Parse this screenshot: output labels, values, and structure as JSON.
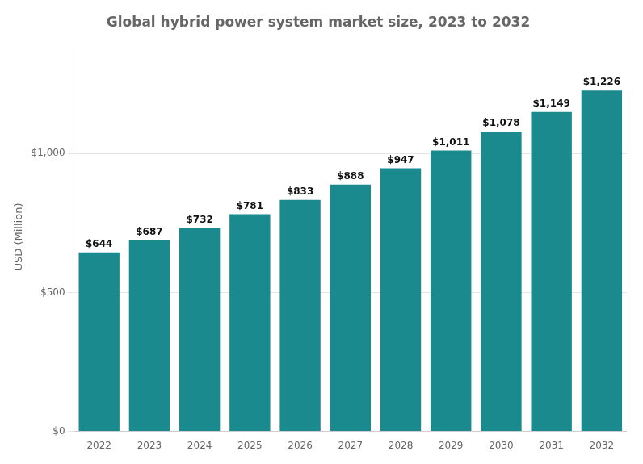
{
  "chart_data": {
    "type": "bar",
    "title": "Global hybrid power system market size, 2023 to 2032",
    "categories": [
      "2022",
      "2023",
      "2024",
      "2025",
      "2026",
      "2027",
      "2028",
      "2029",
      "2030",
      "2031",
      "2032"
    ],
    "values": [
      644,
      687,
      732,
      781,
      833,
      888,
      947,
      1011,
      1078,
      1149,
      1226
    ],
    "value_labels": [
      "$644",
      "$687",
      "$732",
      "$781",
      "$833",
      "$888",
      "$947",
      "$1,011",
      "$1,078",
      "$1,149",
      "$1,226"
    ],
    "color": "#1a8a8f",
    "ylabel": "USD (Million)",
    "ylim": [
      0,
      1400
    ],
    "yticks": [
      {
        "value": 0,
        "label": "$0"
      },
      {
        "value": 500,
        "label": "$500"
      },
      {
        "value": 1000,
        "label": "$1,000"
      }
    ],
    "grid": true,
    "data_labels": true
  }
}
